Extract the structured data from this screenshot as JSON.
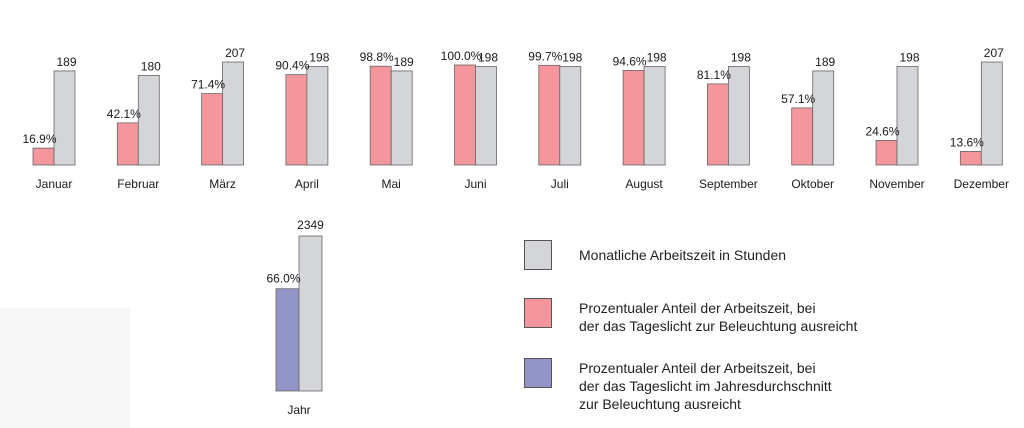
{
  "chart_data": [
    {
      "type": "bar",
      "categories": [
        "Januar",
        "Februar",
        "März",
        "April",
        "Mai",
        "Juni",
        "Juli",
        "August",
        "September",
        "Oktober",
        "November",
        "Dezember"
      ],
      "series": [
        {
          "name": "Prozentualer Anteil der Arbeitszeit, bei der das Tageslicht zur Beleuchtung ausreicht",
          "values": [
            16.9,
            42.1,
            71.4,
            90.4,
            98.8,
            100.0,
            99.7,
            94.6,
            81.1,
            57.1,
            24.6,
            13.6
          ],
          "labels": [
            "16.9%",
            "42.1%",
            "71.4%",
            "90.4%",
            "98.8%",
            "100.0%",
            "99.7%",
            "94.6%",
            "81.1%",
            "57.1%",
            "24.6%",
            "13.6%"
          ],
          "color": "#f4969c"
        },
        {
          "name": "Monatliche Arbeitszeit in Stunden",
          "values": [
            189,
            180,
            207,
            198,
            189,
            198,
            198,
            198,
            198,
            189,
            198,
            207
          ],
          "labels": [
            "189",
            "180",
            "207",
            "198",
            "189",
            "198",
            "198",
            "198",
            "198",
            "189",
            "198",
            "207"
          ],
          "color": "#d4d5d8"
        }
      ]
    },
    {
      "type": "bar",
      "categories": [
        "Jahr"
      ],
      "series": [
        {
          "name": "Prozentualer Anteil der Arbeitszeit, bei der das Tageslicht im Jahresdurchschnitt zur Beleuchtung ausreicht",
          "values": [
            66.0
          ],
          "labels": [
            "66.0%"
          ],
          "color": "#9394c8"
        },
        {
          "name": "Monatliche Arbeitszeit in Stunden",
          "values": [
            2349
          ],
          "labels": [
            "2349"
          ],
          "color": "#d4d5d8"
        }
      ]
    }
  ],
  "legend": {
    "items": [
      {
        "label": "Monatliche Arbeitszeit in Stunden",
        "color": "#d4d5d8"
      },
      {
        "label": "Prozentualer Anteil der Arbeitszeit, bei\nder das Tageslicht zur Beleuchtung ausreicht",
        "color": "#f4969c"
      },
      {
        "label": "Prozentualer Anteil der Arbeitszeit, bei\nder das Tageslicht im Jahresdurchschnitt\nzur Beleuchtung ausreicht",
        "color": "#9394c8"
      }
    ]
  }
}
